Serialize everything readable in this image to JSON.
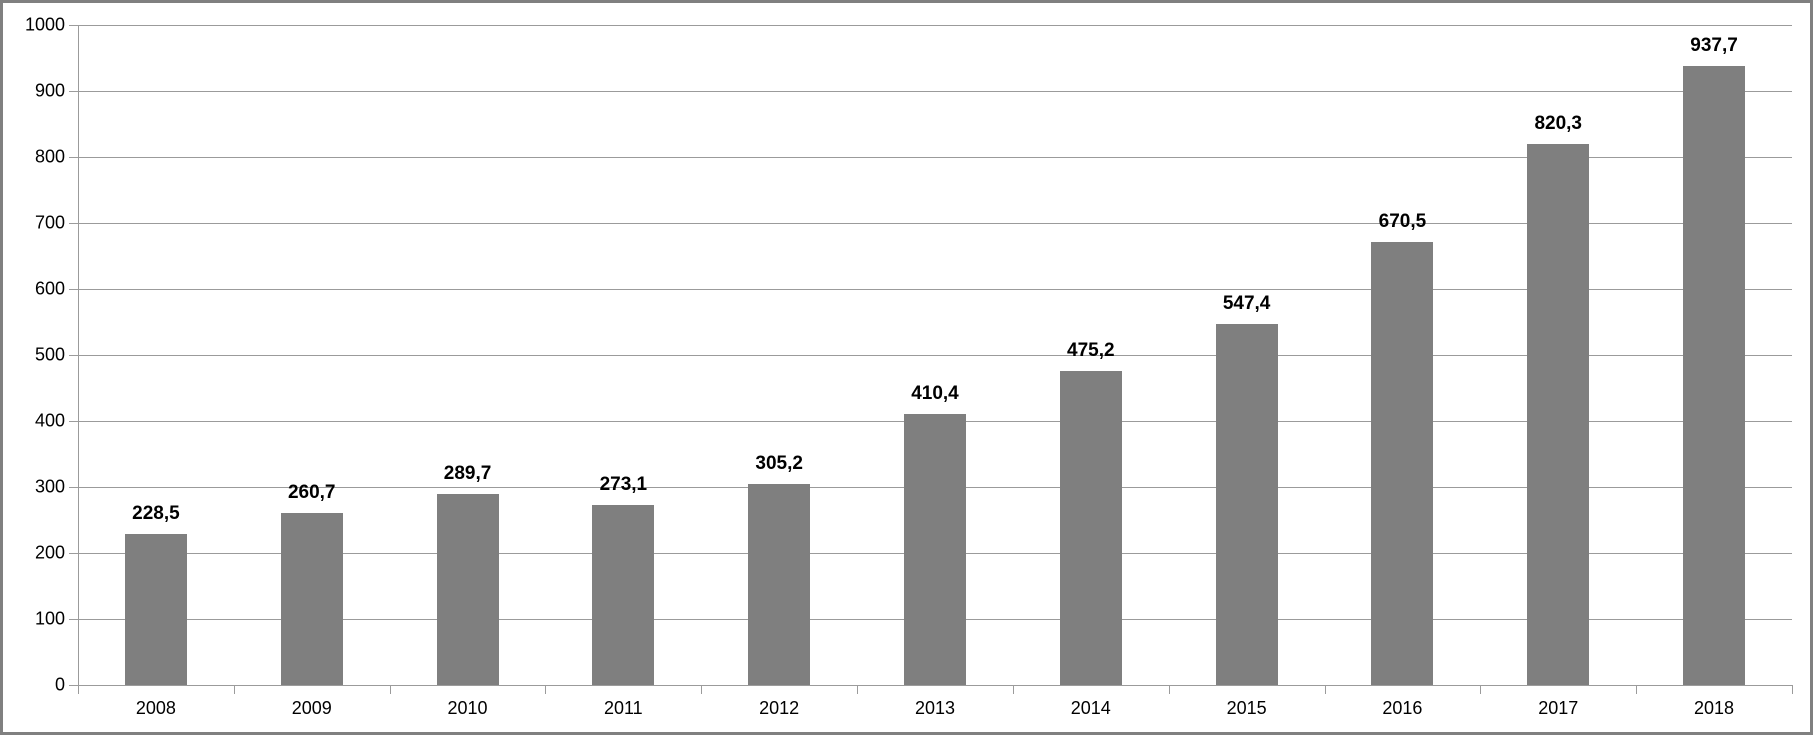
{
  "chart_data": {
    "type": "bar",
    "title": "",
    "xlabel": "",
    "ylabel": "",
    "categories": [
      "2008",
      "2009",
      "2010",
      "2011",
      "2012",
      "2013",
      "2014",
      "2015",
      "2016",
      "2017",
      "2018"
    ],
    "values": [
      228.5,
      260.7,
      289.7,
      273.1,
      305.2,
      410.4,
      475.2,
      547.4,
      670.5,
      820.3,
      937.7
    ],
    "value_labels": [
      "228,5",
      "260,7",
      "289,7",
      "273,1",
      "305,2",
      "410,4",
      "475,2",
      "547,4",
      "670,5",
      "820,3",
      "937,7"
    ],
    "decimal_separator": ",",
    "ylim": [
      0,
      1000
    ],
    "y_tick_labels": [
      "0",
      "100",
      "200",
      "300",
      "400",
      "500",
      "600",
      "700",
      "800",
      "900",
      "1000"
    ],
    "grid": true,
    "legend": "none",
    "colors": {
      "bar": "#7F7F7F",
      "gridline": "#9B9B9B",
      "axis": "#9B9B9B",
      "frame_border": "#808080",
      "text": "#000000",
      "background": "#FFFFFF"
    }
  }
}
